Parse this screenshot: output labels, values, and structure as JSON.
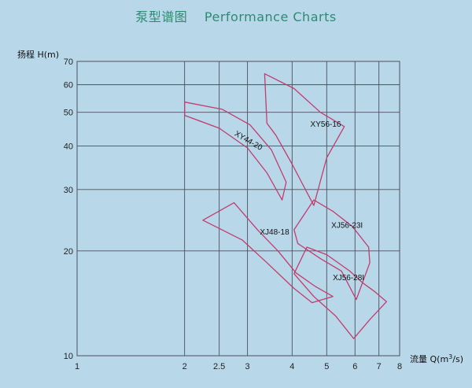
{
  "title_cn": "泵型谱图",
  "title_en": "Performance Charts",
  "chart_data": {
    "type": "performance-envelope",
    "x_scale": "log",
    "y_scale": "log",
    "ylabel": "扬程 H(m)",
    "xlabel_prefix": "流量 Q(m",
    "xlabel_sup": "3",
    "xlabel_suffix": "/s)",
    "xlim": [
      1,
      8
    ],
    "ylim": [
      10,
      70
    ],
    "x_ticks": [
      1,
      2,
      2.5,
      3,
      4,
      5,
      6,
      7,
      8
    ],
    "x_tick_labels": [
      "1",
      "2",
      "2.5",
      "3",
      "4",
      "5",
      "6",
      "7",
      "8"
    ],
    "y_ticks": [
      10,
      20,
      30,
      40,
      50,
      60,
      70
    ],
    "y_tick_labels": [
      "10",
      "20",
      "30",
      "40",
      "50",
      "60",
      "70"
    ],
    "grid": true,
    "curve_color": "#c23c6e",
    "grid_color": "#4b4f5c",
    "regions": [
      {
        "name": "XY44-20",
        "label_pos": [
          2.75,
          43
        ],
        "label_rotate": 30,
        "outline": [
          [
            2.0,
            53.5
          ],
          [
            2.55,
            51
          ],
          [
            3.05,
            46
          ],
          [
            3.5,
            39
          ],
          [
            3.85,
            31.5
          ],
          [
            3.75,
            28
          ],
          [
            3.4,
            33.5
          ],
          [
            3.0,
            39.5
          ],
          [
            2.5,
            45
          ],
          [
            2.0,
            49
          ]
        ]
      },
      {
        "name": "XY56-16",
        "label_pos": [
          4.5,
          45.5
        ],
        "label_rotate": 0,
        "outline": [
          [
            3.35,
            64.5
          ],
          [
            4.05,
            58.5
          ],
          [
            4.8,
            50
          ],
          [
            5.6,
            45.5
          ],
          [
            5.0,
            37
          ],
          [
            4.6,
            27
          ],
          [
            4.0,
            35.5
          ],
          [
            3.6,
            43
          ],
          [
            3.4,
            46.5
          ]
        ]
      },
      {
        "name": "XJ48-18",
        "label_pos": [
          3.25,
          22.3
        ],
        "label_rotate": 0,
        "outline": [
          [
            2.25,
            24.5
          ],
          [
            2.75,
            27.5
          ],
          [
            3.2,
            23
          ],
          [
            3.65,
            20
          ],
          [
            4.1,
            17.3
          ],
          [
            4.65,
            15.8
          ],
          [
            5.2,
            14.8
          ],
          [
            4.55,
            14.2
          ],
          [
            4.05,
            15.6
          ],
          [
            3.4,
            18.5
          ],
          [
            2.9,
            21.5
          ]
        ]
      },
      {
        "name": "XJ56-23I",
        "label_pos": [
          5.15,
          23.3
        ],
        "label_rotate": 0,
        "outline": [
          [
            4.6,
            28
          ],
          [
            5.2,
            26
          ],
          [
            5.9,
            23.5
          ],
          [
            6.55,
            20.5
          ],
          [
            6.6,
            18.5
          ],
          [
            6.05,
            14.5
          ],
          [
            5.5,
            17.5
          ],
          [
            4.8,
            19
          ],
          [
            4.15,
            21
          ],
          [
            4.05,
            23
          ]
        ]
      },
      {
        "name": "XJ56-28I",
        "label_pos": [
          5.2,
          16.5
        ],
        "label_rotate": 0,
        "outline": [
          [
            4.05,
            17.2
          ],
          [
            4.4,
            20.5
          ],
          [
            5.0,
            19.5
          ],
          [
            5.8,
            17.5
          ],
          [
            6.3,
            16.2
          ],
          [
            6.8,
            15.3
          ],
          [
            7.35,
            14.3
          ],
          [
            6.6,
            12.7
          ],
          [
            5.95,
            11.2
          ],
          [
            5.3,
            13
          ],
          [
            4.6,
            14.8
          ]
        ]
      }
    ]
  }
}
